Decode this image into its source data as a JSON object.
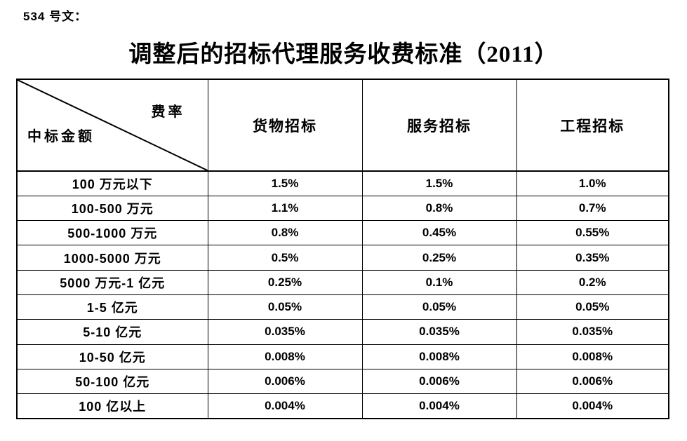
{
  "page": {
    "doc_label": "534 号文：",
    "title": "调整后的招标代理服务收费标准（2011）"
  },
  "table": {
    "corner": {
      "top_right": "费率",
      "bottom_left": "中标金额"
    },
    "columns": [
      "货物招标",
      "服务招标",
      "工程招标"
    ],
    "rows": [
      {
        "label": "100 万元以下",
        "values": [
          "1.5%",
          "1.5%",
          "1.0%"
        ]
      },
      {
        "label": "100-500 万元",
        "values": [
          "1.1%",
          "0.8%",
          "0.7%"
        ]
      },
      {
        "label": "500-1000 万元",
        "values": [
          "0.8%",
          "0.45%",
          "0.55%"
        ]
      },
      {
        "label": "1000-5000 万元",
        "values": [
          "0.5%",
          "0.25%",
          "0.35%"
        ]
      },
      {
        "label": "5000 万元-1 亿元",
        "values": [
          "0.25%",
          "0.1%",
          "0.2%"
        ]
      },
      {
        "label": "1-5 亿元",
        "values": [
          "0.05%",
          "0.05%",
          "0.05%"
        ]
      },
      {
        "label": "5-10 亿元",
        "values": [
          "0.035%",
          "0.035%",
          "0.035%"
        ]
      },
      {
        "label": "10-50 亿元",
        "values": [
          "0.008%",
          "0.008%",
          "0.008%"
        ]
      },
      {
        "label": "50-100 亿元",
        "values": [
          "0.006%",
          "0.006%",
          "0.006%"
        ]
      },
      {
        "label": "100 亿以上",
        "values": [
          "0.004%",
          "0.004%",
          "0.004%"
        ]
      }
    ]
  }
}
